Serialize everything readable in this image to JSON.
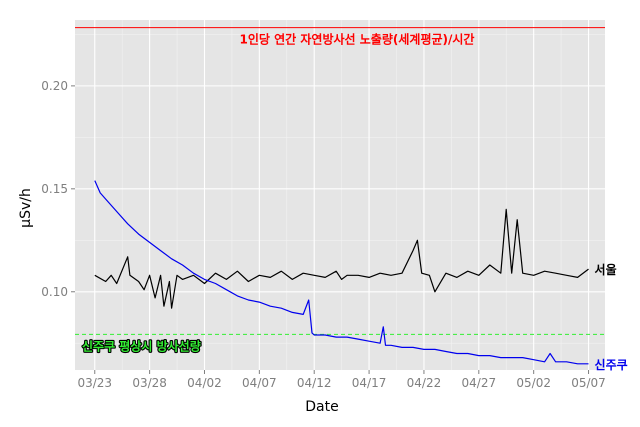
{
  "chart_data": {
    "type": "line",
    "xlabel": "Date",
    "ylabel": "μSv/h",
    "x_ticks": [
      "03/23",
      "03/28",
      "04/02",
      "04/07",
      "04/12",
      "04/17",
      "04/22",
      "04/27",
      "05/02",
      "05/07"
    ],
    "y_ticks": [
      "0.10",
      "0.15",
      "0.20"
    ],
    "x_range_days": [
      -1.8,
      46.5
    ],
    "ylim": [
      0.062,
      0.232
    ],
    "grid": true,
    "background": "#e5e5e5",
    "series": [
      {
        "name": "서울",
        "color": "#000000",
        "x_days": [
          0,
          1,
          1.5,
          2,
          3,
          3.2,
          4,
          4.5,
          5,
          5.5,
          6,
          6.3,
          6.8,
          7,
          7.5,
          8,
          9,
          10,
          11,
          12,
          13,
          14,
          15,
          16,
          17,
          18,
          19,
          20,
          21,
          22,
          22.5,
          23,
          24,
          25,
          26,
          27,
          28,
          29,
          29.4,
          29.8,
          30.5,
          31,
          32,
          33,
          34,
          35,
          36,
          37,
          37.5,
          38,
          38.5,
          39,
          40,
          41,
          42,
          43,
          44,
          45
        ],
        "values": [
          0.108,
          0.105,
          0.108,
          0.104,
          0.117,
          0.108,
          0.105,
          0.101,
          0.108,
          0.097,
          0.108,
          0.093,
          0.105,
          0.092,
          0.108,
          0.106,
          0.108,
          0.104,
          0.109,
          0.106,
          0.11,
          0.105,
          0.108,
          0.107,
          0.11,
          0.106,
          0.109,
          0.108,
          0.107,
          0.11,
          0.106,
          0.108,
          0.108,
          0.107,
          0.109,
          0.108,
          0.109,
          0.12,
          0.125,
          0.109,
          0.108,
          0.1,
          0.109,
          0.107,
          0.11,
          0.108,
          0.113,
          0.109,
          0.14,
          0.109,
          0.135,
          0.109,
          0.108,
          0.11,
          0.109,
          0.108,
          0.107,
          0.111
        ]
      },
      {
        "name": "신주쿠",
        "color": "#0000ee",
        "x_days": [
          0,
          0.5,
          1,
          2,
          3,
          4,
          5,
          6,
          7,
          8,
          9,
          10,
          11,
          12,
          13,
          14,
          15,
          16,
          17,
          18,
          19,
          19.5,
          19.8,
          20,
          21,
          22,
          23,
          24,
          25,
          26,
          26.3,
          26.5,
          27,
          28,
          29,
          30,
          31,
          32,
          33,
          34,
          35,
          36,
          37,
          38,
          39,
          40,
          41,
          41.5,
          42,
          43,
          44,
          45
        ],
        "values": [
          0.154,
          0.148,
          0.145,
          0.139,
          0.133,
          0.128,
          0.124,
          0.12,
          0.116,
          0.113,
          0.109,
          0.106,
          0.104,
          0.101,
          0.098,
          0.096,
          0.095,
          0.093,
          0.092,
          0.09,
          0.089,
          0.096,
          0.08,
          0.079,
          0.079,
          0.078,
          0.078,
          0.077,
          0.076,
          0.075,
          0.083,
          0.074,
          0.074,
          0.073,
          0.073,
          0.072,
          0.072,
          0.071,
          0.07,
          0.07,
          0.069,
          0.069,
          0.068,
          0.068,
          0.068,
          0.067,
          0.066,
          0.07,
          0.066,
          0.066,
          0.065,
          0.065
        ]
      }
    ],
    "reference_lines": [
      {
        "label": "1인당 연간 자연방사선 노출량(세계평균)/시간",
        "value": 0.2283,
        "color": "#ff0000",
        "style": "solid"
      },
      {
        "label": "신주쿠 평상시 방사선량",
        "value": 0.0793,
        "color": "#33ee33",
        "style": "dashed"
      }
    ]
  }
}
